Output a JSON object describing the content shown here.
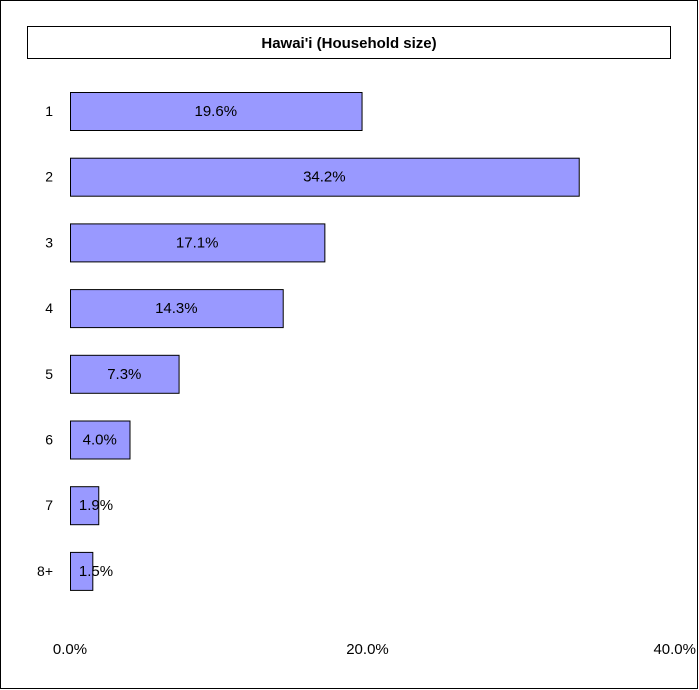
{
  "chart_data": {
    "type": "bar",
    "orientation": "horizontal",
    "title": "Hawai'i (Household size)",
    "categories": [
      "1",
      "2",
      "3",
      "4",
      "5",
      "6",
      "7",
      "8+"
    ],
    "values": [
      19.6,
      34.2,
      17.1,
      14.3,
      7.3,
      4.0,
      1.9,
      1.5
    ],
    "value_labels": [
      "19.6%",
      "34.2%",
      "17.1%",
      "14.3%",
      "7.3%",
      "4.0%",
      "1.9%",
      "1.5%"
    ],
    "xlim": [
      0,
      40
    ],
    "x_ticks": [
      0,
      20,
      40
    ],
    "x_tick_labels": [
      "0.0%",
      "20.0%",
      "40.0%"
    ],
    "grid": false,
    "bar_color": "#9999ff",
    "border_color": "#000000"
  }
}
